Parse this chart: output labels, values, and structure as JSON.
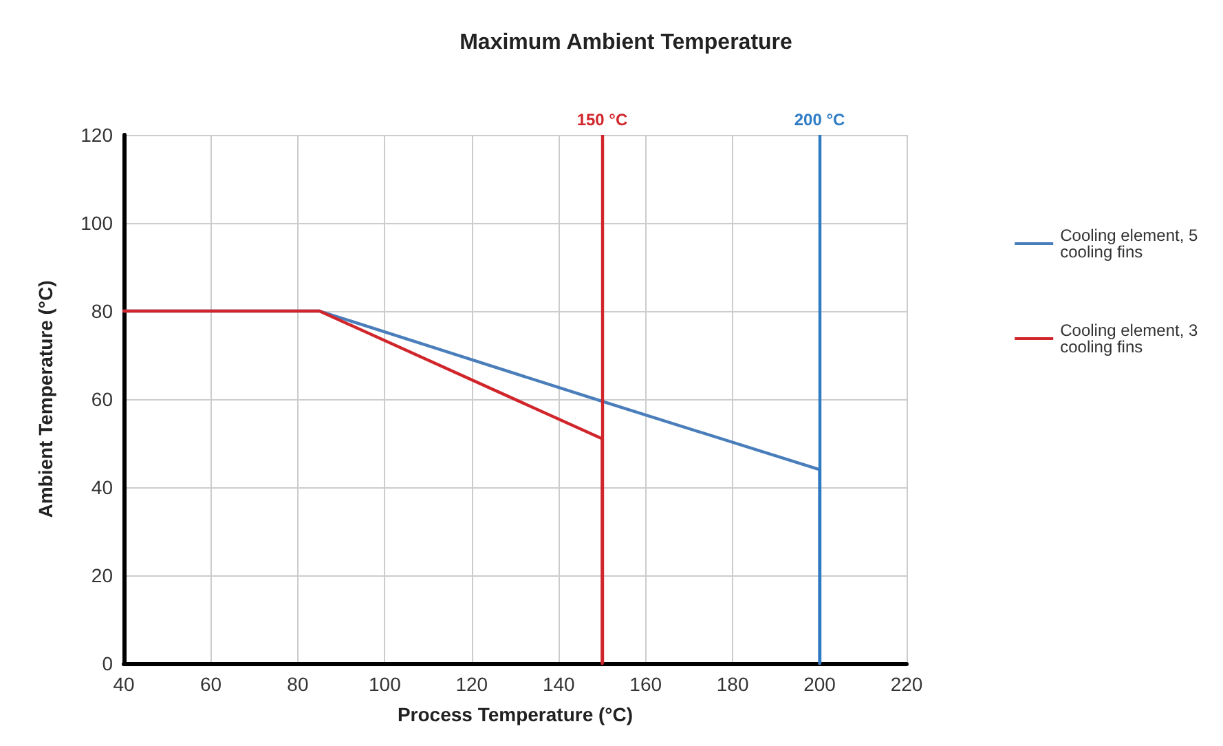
{
  "chart_data": {
    "type": "line",
    "title": "Maximum Ambient Temperature",
    "xlabel": "Process Temperature (°C)",
    "ylabel": "Ambient Temperature (°C)",
    "series": [
      {
        "name": "Cooling element, 5 cooling fins",
        "color": "#4a7ebb",
        "x": [
          40,
          85,
          150,
          200,
          200
        ],
        "values": [
          80,
          80,
          59.5,
          44,
          0
        ]
      },
      {
        "name": "Cooling element, 3 cooling fins",
        "color": "#d0262b",
        "x": [
          40,
          85,
          150,
          150
        ],
        "values": [
          80,
          80,
          51,
          0
        ]
      }
    ],
    "xlim": [
      40,
      220
    ],
    "xticks": [
      40,
      60,
      80,
      100,
      120,
      140,
      160,
      180,
      200,
      220
    ],
    "ylim": [
      0,
      120
    ],
    "yticks": [
      0,
      20,
      40,
      60,
      80,
      100,
      120
    ],
    "ref_lines": [
      {
        "axis": "x",
        "value": 150,
        "label": "150 °C",
        "color": "#d0262b"
      },
      {
        "axis": "x",
        "value": 200,
        "label": "200 °C",
        "color": "#2e7bc4"
      }
    ],
    "grid": true,
    "legend": "right",
    "marker": "none",
    "line_style": "solid"
  }
}
